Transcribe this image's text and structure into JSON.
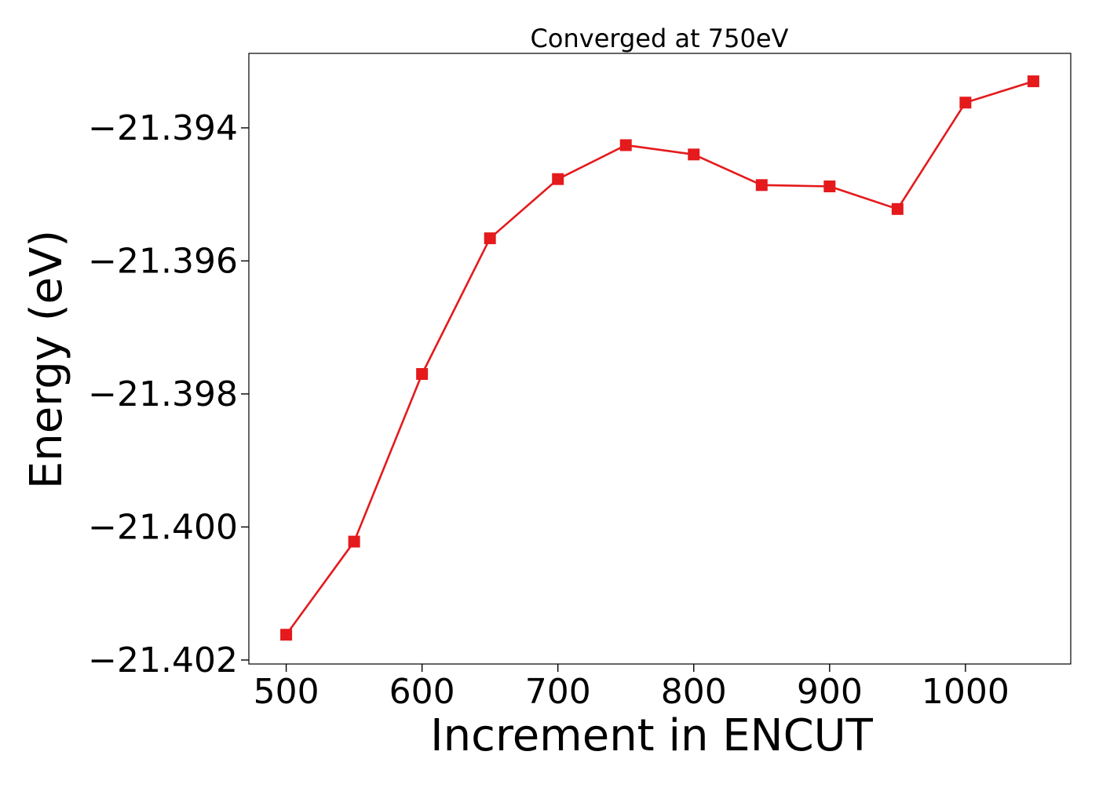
{
  "chart_data": {
    "type": "line",
    "title": "Converged at 750eV",
    "xlabel": "Increment in ENCUT",
    "ylabel": "Energy (eV)",
    "x": [
      500,
      550,
      600,
      650,
      700,
      750,
      800,
      850,
      900,
      950,
      1000,
      1050
    ],
    "series": [
      {
        "name": "",
        "values": [
          -21.40162,
          -21.40022,
          -21.3977,
          -21.39566,
          -21.39477,
          -21.39426,
          -21.3944,
          -21.39486,
          -21.39488,
          -21.39522,
          -21.39362,
          -21.3933
        ],
        "color": "#e41a1c",
        "marker": "square"
      }
    ],
    "xlim": [
      472.5,
      1077.5
    ],
    "ylim": [
      -21.40206,
      -21.39288
    ],
    "xticks": [
      500,
      600,
      700,
      800,
      900,
      1000
    ],
    "xtick_labels": [
      "500",
      "600",
      "700",
      "800",
      "900",
      "1000"
    ],
    "yticks": [
      -21.402,
      -21.4,
      -21.398,
      -21.396,
      -21.394
    ],
    "ytick_labels": [
      "−21.402",
      "−21.400",
      "−21.398",
      "−21.396",
      "−21.394"
    ],
    "grid": false,
    "legend": "none"
  }
}
